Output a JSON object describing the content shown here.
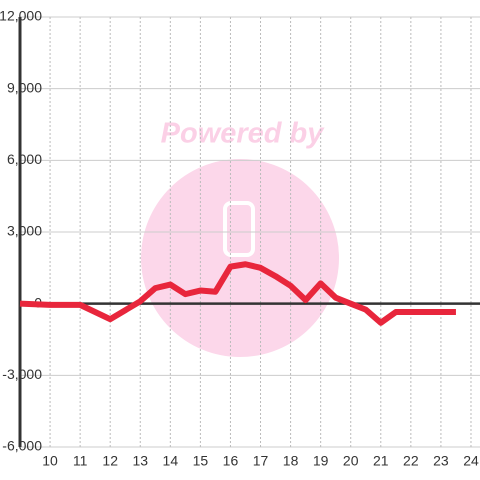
{
  "chart_data": {
    "type": "line",
    "watermark": "Powered by",
    "x": [
      9,
      10,
      11,
      12,
      13,
      13.5,
      14,
      14.5,
      15,
      15.5,
      16,
      16.5,
      17,
      17.5,
      18,
      18.5,
      19,
      19.5,
      20,
      20.5,
      21,
      21.5,
      22,
      23.5
    ],
    "values": [
      0,
      -50,
      -50,
      -650,
      100,
      650,
      800,
      400,
      550,
      500,
      1550,
      1650,
      1500,
      1150,
      750,
      150,
      850,
      250,
      0,
      -250,
      -800,
      -350,
      -350,
      -350
    ],
    "color": "#e8263c",
    "xlim": [
      9,
      24.3
    ],
    "xticks": [
      10,
      11,
      12,
      13,
      14,
      15,
      16,
      17,
      18,
      19,
      20,
      21,
      22,
      23,
      24
    ],
    "ylim": [
      -6000,
      12000
    ],
    "yticks": [
      {
        "value": -6000,
        "label": "-6,000"
      },
      {
        "value": -3000,
        "label": "-3,000"
      },
      0,
      {
        "value": 3000,
        "label": "3,000"
      },
      {
        "value": 6000,
        "label": "6,000"
      },
      {
        "value": 9000,
        "label": "9,000"
      },
      {
        "value": 12000,
        "label": "12,000"
      }
    ],
    "grid": true
  }
}
